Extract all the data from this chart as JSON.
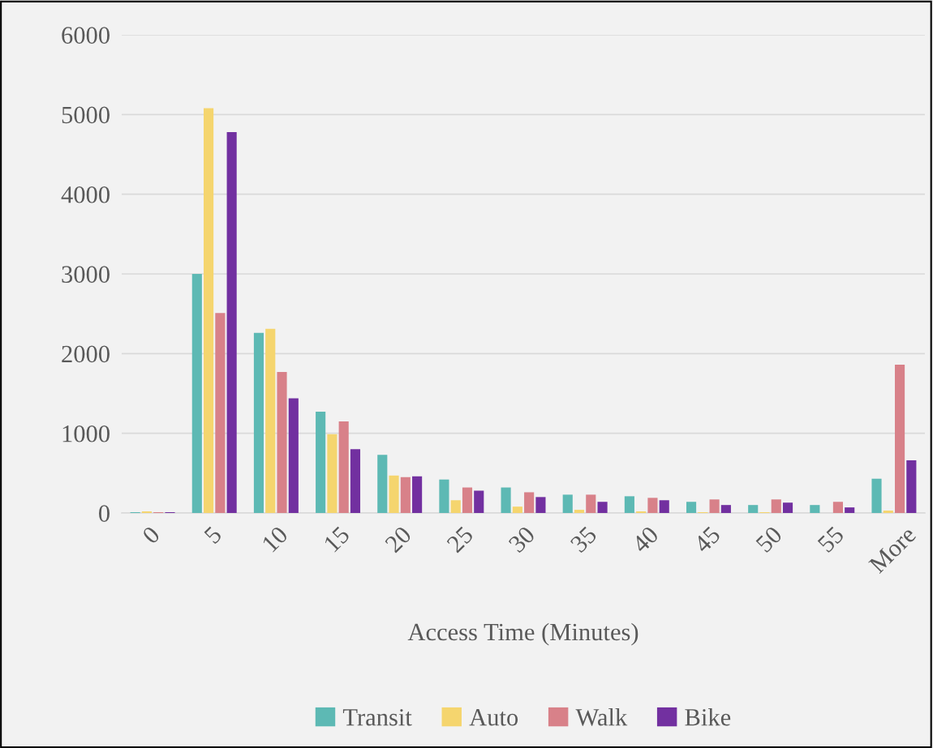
{
  "chart_data": {
    "type": "bar",
    "xlabel": "Access Time (Minutes)",
    "categories": [
      "0",
      "5",
      "10",
      "15",
      "20",
      "25",
      "30",
      "35",
      "40",
      "45",
      "50",
      "55",
      "More"
    ],
    "series": [
      {
        "name": "Transit",
        "color": "#5db9b4",
        "values": [
          10,
          3000,
          2260,
          1270,
          730,
          420,
          320,
          230,
          210,
          140,
          100,
          100,
          430
        ]
      },
      {
        "name": "Auto",
        "color": "#f5d56e",
        "values": [
          20,
          5080,
          2310,
          990,
          470,
          160,
          80,
          40,
          20,
          10,
          10,
          null,
          30
        ]
      },
      {
        "name": "Walk",
        "color": "#d88189",
        "values": [
          10,
          2510,
          1770,
          1150,
          450,
          320,
          260,
          230,
          190,
          170,
          170,
          140,
          1860
        ]
      },
      {
        "name": "Bike",
        "color": "#7230a0",
        "values": [
          10,
          4780,
          1440,
          800,
          460,
          280,
          200,
          140,
          160,
          100,
          130,
          70,
          660
        ]
      }
    ],
    "ylim": [
      0,
      6000
    ],
    "yticks": [
      0,
      1000,
      2000,
      3000,
      4000,
      5000,
      6000
    ],
    "grid": "y",
    "legend": "bottom"
  }
}
